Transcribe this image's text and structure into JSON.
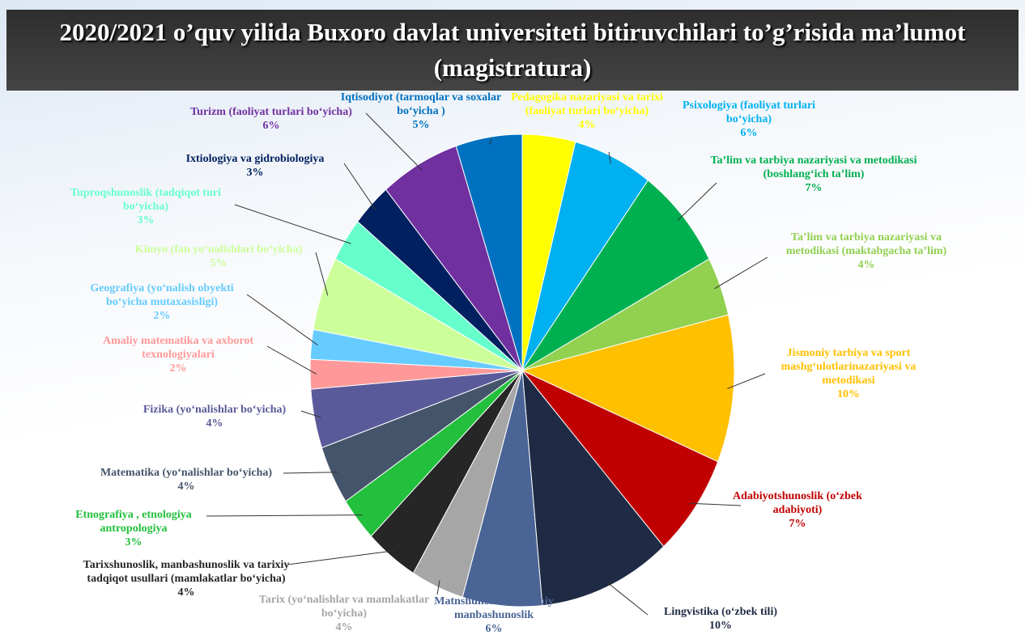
{
  "chart_data": {
    "type": "pie",
    "title": "2020/2021 o’quv yilida Buxoro davlat universiteti bitiruvchilari to’g’risida ma’lumot (magistratura)",
    "categories": [
      "Pedagogika nazariyasi va tarixi (faoliyat turlari bo‘yicha)",
      "Psixologiya (faoliyat turlari bo‘yicha)",
      "Ta’lim va tarbiya nazariyasi va metodikasi (boshlang‘ich ta’lim)",
      "Ta’lim va tarbiya nazariyasi va metodikasi (maktabgacha ta’lim)",
      "Jismoniy tarbiya va sport mashg‘ulotlarinazariyasi va metodikasi",
      "Adabiyotshunoslik (o‘zbek adabiyoti)",
      "Lingvistika (o‘zbek tili)",
      "Matnshunoslikva adabiy manbashunoslik",
      "Tarix (yo‘nalishlar va mamlakatlar bo‘yicha)",
      "Tarixshunoslik, manbashunoslik va tarixiy tadqiqot usullari (mamlakatlar bo‘yicha)",
      "Etnografiya , etnologiya antropologiya",
      "Matematika (yo‘nalishlar bo‘yicha)",
      "Fizika (yo‘nalishlar bo‘yicha)",
      "Amaliy matematika va axborot texnologiyalari",
      "Geografiya (yo‘nalish obyekti bo‘yicha mutaxasisligi)",
      "Kimyo (fan yo‘nalishlari bo‘yicha)",
      "Tuproqshunoslik (tadqiqot turi bo‘yicha)",
      "Ixtiologiya va gidrobiologiya",
      "Turizm (faoliyat turlari bo‘yicha)",
      "Iqtisodiyot (tarmoqlar va soxalar bo‘yicha )"
    ],
    "values": [
      4,
      6,
      7,
      4,
      10,
      7,
      10,
      6,
      4,
      4,
      3,
      4,
      4,
      2,
      2,
      5,
      3,
      3,
      6,
      5
    ],
    "value_labels": [
      "4%",
      "6%",
      "7%",
      "4%",
      "10%",
      "7%",
      "10%",
      "6%",
      "4%",
      "4%",
      "3%",
      "4%",
      "4%",
      "2%",
      "2%",
      "5%",
      "3%",
      "3%",
      "6%",
      "5%"
    ],
    "colors": [
      "#ffff00",
      "#00b0f0",
      "#00b050",
      "#92d050",
      "#ffc000",
      "#c00000",
      "#1f2a44",
      "#4a6496",
      "#a6a6a6",
      "#262626",
      "#22c03c",
      "#44546a",
      "#5a5a9a",
      "#ff9999",
      "#66ccff",
      "#ccff99",
      "#66ffcc",
      "#002060",
      "#7030a0",
      "#0070c0"
    ]
  }
}
